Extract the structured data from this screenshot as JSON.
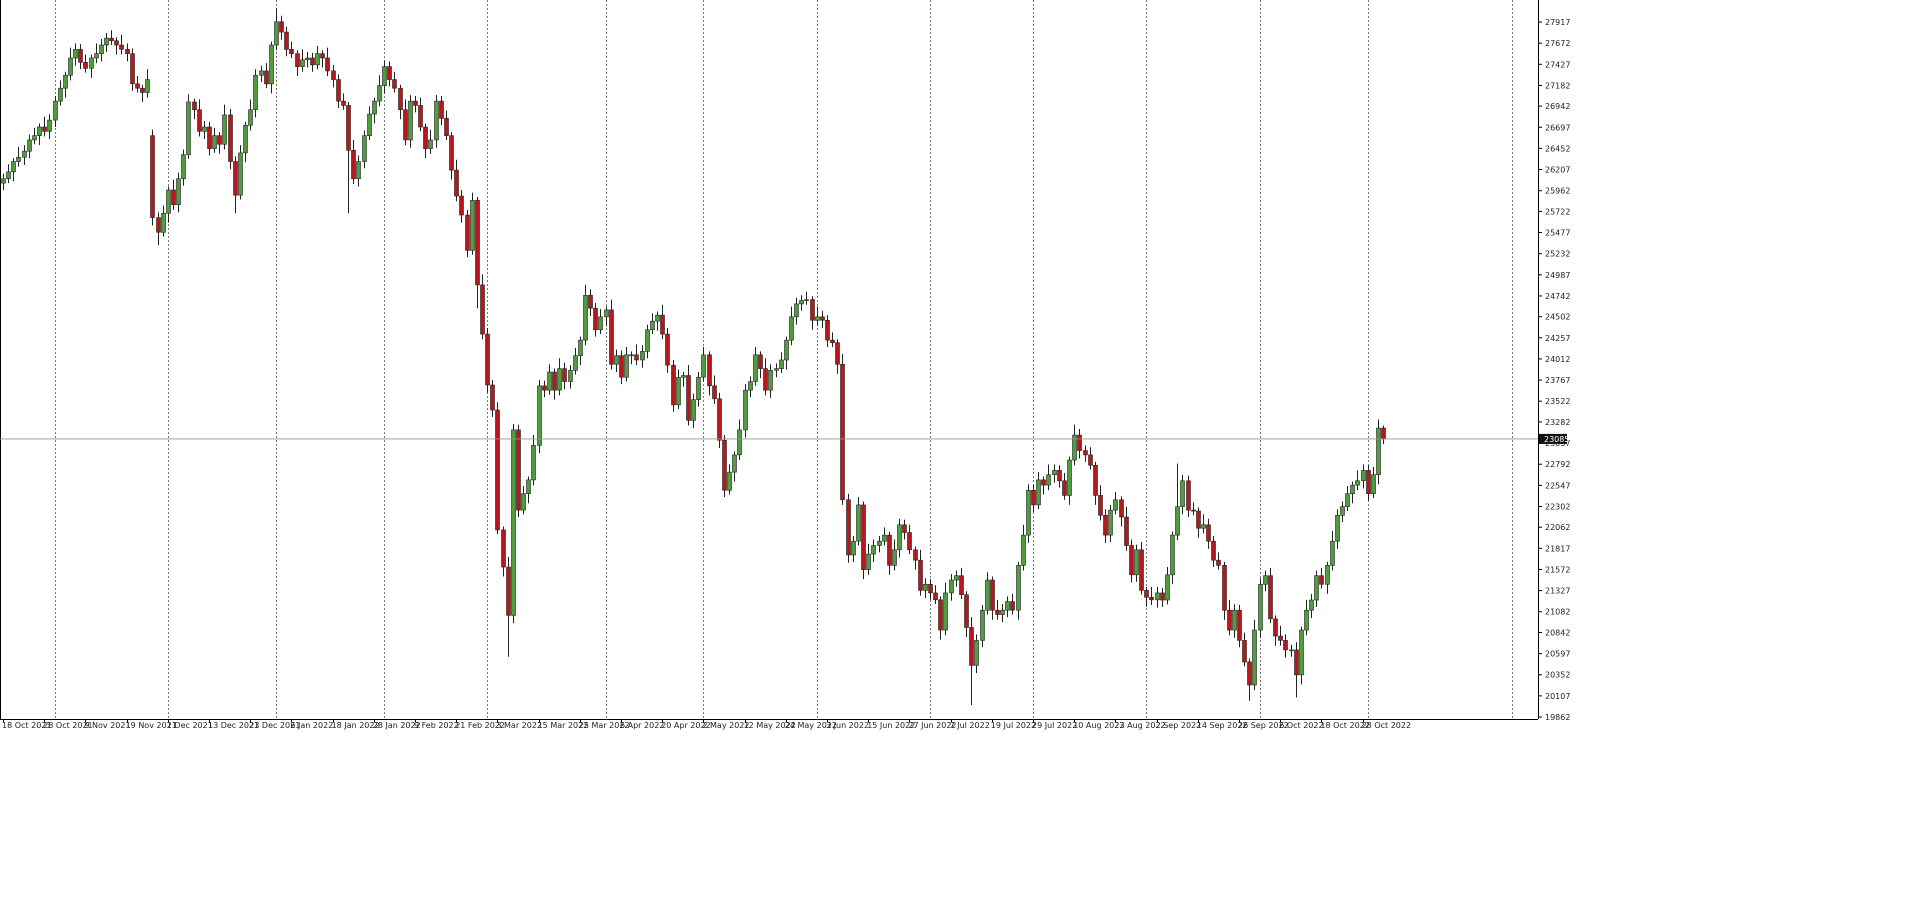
{
  "chart_data": {
    "type": "candlestick",
    "up_color": "#4f9d3e",
    "down_color": "#b5191d",
    "current_price": 23085,
    "ylim": [
      19839,
      28172
    ],
    "yticks": [
      19862,
      20107,
      20352,
      20597,
      20842,
      21082,
      21327,
      21572,
      21817,
      22062,
      22302,
      22547,
      22792,
      23037,
      23282,
      23522,
      23767,
      24012,
      24257,
      24502,
      24742,
      24987,
      25232,
      25477,
      25722,
      25962,
      26207,
      26452,
      26697,
      26942,
      27182,
      27427,
      27672,
      27917
    ],
    "categories": [
      "18 Oct 2021",
      null,
      null,
      null,
      null,
      null,
      null,
      null,
      "28 Oct 2021",
      null,
      null,
      null,
      null,
      null,
      null,
      null,
      "9 Nov 2021",
      null,
      null,
      null,
      null,
      null,
      null,
      null,
      "19 Nov 2021",
      null,
      null,
      null,
      null,
      null,
      null,
      null,
      "1 Dec 2021",
      null,
      null,
      null,
      null,
      null,
      null,
      null,
      "13 Dec 2021",
      null,
      null,
      null,
      null,
      null,
      null,
      null,
      "23 Dec 2021",
      null,
      null,
      null,
      null,
      null,
      null,
      null,
      "6 Jan 2022",
      null,
      null,
      null,
      null,
      null,
      null,
      null,
      "18 Jan 2022",
      null,
      null,
      null,
      null,
      null,
      null,
      null,
      "28 Jan 2022",
      null,
      null,
      null,
      null,
      null,
      null,
      null,
      "9 Feb 2022",
      null,
      null,
      null,
      null,
      null,
      null,
      null,
      "21 Feb 2022",
      null,
      null,
      null,
      null,
      null,
      null,
      null,
      "3 Mar 2022",
      null,
      null,
      null,
      null,
      null,
      null,
      null,
      "15 Mar 2022",
      null,
      null,
      null,
      null,
      null,
      null,
      null,
      "25 Mar 2022",
      null,
      null,
      null,
      null,
      null,
      null,
      null,
      "6 Apr 2022",
      null,
      null,
      null,
      null,
      null,
      null,
      null,
      "20 Apr 2022",
      null,
      null,
      null,
      null,
      null,
      null,
      null,
      "2 May 2022",
      null,
      null,
      null,
      null,
      null,
      null,
      null,
      "12 May 2022",
      null,
      null,
      null,
      null,
      null,
      null,
      null,
      "24 May 2022",
      null,
      null,
      null,
      null,
      null,
      null,
      null,
      "3 Jun 2022",
      null,
      null,
      null,
      null,
      null,
      null,
      null,
      "15 Jun 2022",
      null,
      null,
      null,
      null,
      null,
      null,
      null,
      "27 Jun 2022",
      null,
      null,
      null,
      null,
      null,
      null,
      null,
      "7 Jul 2022",
      null,
      null,
      null,
      null,
      null,
      null,
      null,
      "19 Jul 2022",
      null,
      null,
      null,
      null,
      null,
      null,
      null,
      "29 Jul 2022",
      null,
      null,
      null,
      null,
      null,
      null,
      null,
      "10 Aug 2022",
      null,
      null,
      null,
      null,
      null,
      null,
      null,
      "23 Aug 2022",
      null,
      null,
      null,
      null,
      null,
      null,
      null,
      "2 Sep 2022",
      null,
      null,
      null,
      null,
      null,
      null,
      null,
      "14 Sep 2022",
      null,
      null,
      null,
      null,
      null,
      null,
      null,
      "26 Sep 2022",
      null,
      null,
      null,
      null,
      null,
      null,
      null,
      "6 Oct 2022",
      null,
      null,
      null,
      null,
      null,
      null,
      null,
      "18 Oct 2022",
      null,
      null,
      null,
      null,
      null,
      null,
      null,
      "28 Oct 2022",
      null,
      null,
      null,
      null
    ],
    "open": [
      26050,
      26100,
      26180,
      26300,
      26350,
      26420,
      26550,
      26600,
      26700,
      26650,
      26780,
      27000,
      27150,
      27300,
      27500,
      27600,
      27450,
      27380,
      27500,
      27550,
      27650,
      27730,
      27700,
      27650,
      27600,
      27550,
      27200,
      27150,
      27100,
      26600,
      25650,
      25480,
      25700,
      25970,
      25800,
      26100,
      26380,
      26990,
      26900,
      26650,
      26700,
      26450,
      26600,
      26500,
      26840,
      26300,
      25910,
      26400,
      26720,
      26900,
      27300,
      27350,
      27200,
      27650,
      27920,
      27800,
      27600,
      27550,
      27400,
      27480,
      27500,
      27420,
      27550,
      27500,
      27350,
      27250,
      27000,
      26950,
      26430,
      26100,
      26300,
      26600,
      26850,
      27000,
      27180,
      27400,
      27250,
      27150,
      26900,
      26550,
      27000,
      26950,
      26700,
      26450,
      26550,
      27000,
      26800,
      26600,
      26200,
      25900,
      25680,
      25270,
      25850,
      24870,
      24300,
      23710,
      23420,
      22030,
      21600,
      21040,
      23190,
      22260,
      22450,
      22610,
      23010,
      23700,
      23650,
      23860,
      23650,
      23900,
      23750,
      23880,
      24050,
      24230,
      24750,
      24600,
      24350,
      24500,
      24580,
      23950,
      24050,
      23800,
      24060,
      24060,
      24000,
      24100,
      24350,
      24450,
      24520,
      24300,
      23940,
      23480,
      23800,
      23820,
      23300,
      23540,
      23800,
      24060,
      23700,
      23550,
      23070,
      22490,
      22700,
      22900,
      23190,
      23650,
      23750,
      24060,
      23900,
      23650,
      23880,
      23900,
      24000,
      24230,
      24500,
      24650,
      24690,
      24700,
      24460,
      24500,
      24460,
      24230,
      24200,
      23950,
      22380,
      21740,
      21900,
      22320,
      21570,
      21750,
      21850,
      21900,
      21970,
      21620,
      21800,
      22090,
      22000,
      21800,
      21680,
      21330,
      21400,
      21300,
      21220,
      20870,
      21300,
      21450,
      21500,
      21280,
      20900,
      20460,
      20750,
      21100,
      21450,
      21100,
      21050,
      21100,
      21200,
      21100,
      21620,
      21970,
      22490,
      22320,
      22610,
      22550,
      22670,
      22720,
      22600,
      22430,
      22840,
      23130,
      22950,
      22900,
      22780,
      22430,
      22200,
      21970,
      22260,
      22380,
      22180,
      21850,
      21510,
      21800,
      21330,
      21250,
      21220,
      21300,
      21218,
      21510,
      21970,
      22300,
      22600,
      22260,
      22250,
      22050,
      22090,
      21900,
      21680,
      21620,
      21100,
      20870,
      21100,
      20750,
      20500,
      20233,
      20870,
      21400,
      21500,
      21000,
      20800,
      20750,
      20640,
      20640,
      20350,
      20870,
      21100,
      21218,
      21500,
      21400,
      21620,
      21900,
      22200,
      22300,
      22450,
      22550,
      22600,
      22720,
      22450,
      22670,
      23211
    ],
    "high": [
      26160,
      26270,
      26340,
      26470,
      26490,
      26610,
      26690,
      26740,
      26820,
      26850,
      27060,
      27240,
      27340,
      27620,
      27670,
      27660,
      27540,
      27540,
      27670,
      27720,
      27790,
      27820,
      27740,
      27770,
      27670,
      27610,
      27290,
      27190,
      27370,
      26670,
      25710,
      25790,
      26010,
      26090,
      26170,
      26440,
      27080,
      27030,
      27020,
      26770,
      26760,
      26690,
      26640,
      26960,
      26910,
      26360,
      26490,
      26760,
      27020,
      27370,
      27410,
      27440,
      27690,
      28080,
      27990,
      27860,
      27690,
      27590,
      27600,
      27570,
      27560,
      27640,
      27590,
      27620,
      27420,
      27310,
      27090,
      26990,
      26550,
      26370,
      26660,
      26940,
      27040,
      27300,
      27470,
      27460,
      27340,
      27190,
      27020,
      27070,
      27060,
      27040,
      26740,
      26670,
      27070,
      27060,
      26890,
      26640,
      26320,
      25970,
      25740,
      25940,
      25890,
      24990,
      24370,
      23770,
      23510,
      22070,
      21720,
      23260,
      23250,
      22540,
      22650,
      23130,
      23770,
      23760,
      23950,
      23900,
      24020,
      23970,
      23940,
      24140,
      24270,
      24870,
      24820,
      24660,
      24590,
      24620,
      24700,
      24120,
      24110,
      24150,
      24100,
      24180,
      24170,
      24410,
      24540,
      24560,
      24640,
      24370,
      24000,
      23890,
      23860,
      23940,
      23610,
      23860,
      24150,
      24100,
      23820,
      23620,
      23130,
      22790,
      22940,
      23310,
      23720,
      23810,
      24150,
      24100,
      24020,
      23950,
      23960,
      24090,
      24270,
      24620,
      24720,
      24750,
      24790,
      24740,
      24620,
      24570,
      24520,
      24320,
      24240,
      24070,
      22450,
      21960,
      22410,
      22360,
      21870,
      21920,
      21960,
      22060,
      22010,
      21920,
      22160,
      22150,
      22090,
      21840,
      21800,
      21470,
      21460,
      21390,
      21260,
      21420,
      21520,
      21560,
      21590,
      21320,
      21020,
      20820,
      21160,
      21540,
      21490,
      21220,
      21170,
      21260,
      21290,
      21660,
      22090,
      22560,
      22550,
      22700,
      22650,
      22790,
      22790,
      22780,
      22690,
      22880,
      23250,
      23200,
      23010,
      22990,
      22820,
      22550,
      22270,
      22320,
      22470,
      22420,
      22300,
      21920,
      21860,
      21890,
      21370,
      21370,
      21370,
      21360,
      21600,
      22010,
      22800,
      22670,
      22660,
      22350,
      22290,
      22210,
      22160,
      21960,
      21770,
      21660,
      21220,
      21170,
      21160,
      20840,
      20540,
      20990,
      21470,
      21560,
      21590,
      21040,
      20920,
      20820,
      20700,
      20730,
      20910,
      21220,
      21288,
      21560,
      21590,
      21660,
      22020,
      22270,
      22360,
      22540,
      22590,
      22720,
      22790,
      22780,
      22760,
      23310,
      23240
    ],
    "low": [
      25970,
      26050,
      26070,
      26240,
      26260,
      26340,
      26500,
      26490,
      26590,
      26560,
      26700,
      26950,
      27040,
      27240,
      27410,
      27370,
      27330,
      27270,
      27440,
      27460,
      27570,
      27650,
      27540,
      27540,
      27460,
      27120,
      27100,
      26990,
      27040,
      25560,
      25330,
      25430,
      25590,
      25740,
      25710,
      26020,
      26330,
      26790,
      26590,
      26560,
      26370,
      26400,
      26390,
      26440,
      26210,
      25700,
      25860,
      26290,
      26660,
      26810,
      27220,
      27150,
      27090,
      27590,
      27710,
      27520,
      27500,
      27290,
      27340,
      27390,
      27340,
      27370,
      27390,
      27290,
      27160,
      26920,
      26900,
      25700,
      26040,
      26010,
      26220,
      26550,
      26740,
      26940,
      27090,
      27170,
      27100,
      26790,
      26490,
      26460,
      26870,
      26650,
      26340,
      26390,
      26460,
      26720,
      26550,
      26090,
      25840,
      25590,
      25190,
      25220,
      24600,
      24240,
      23620,
      23340,
      21980,
      21490,
      20560,
      20950,
      22180,
      22210,
      22340,
      22550,
      22920,
      23570,
      23600,
      23540,
      23590,
      23660,
      23670,
      23830,
      23940,
      24170,
      24510,
      24270,
      24300,
      24390,
      23890,
      23860,
      23720,
      23750,
      23950,
      23940,
      23910,
      24020,
      24300,
      24340,
      24240,
      23850,
      23400,
      23430,
      23690,
      23240,
      23210,
      23460,
      23750,
      23590,
      23490,
      22980,
      22410,
      22440,
      22590,
      22840,
      23100,
      23570,
      23700,
      23790,
      23590,
      23560,
      23800,
      23850,
      23890,
      24170,
      24410,
      24570,
      24640,
      24350,
      24400,
      24370,
      24150,
      24150,
      23840,
      22320,
      21650,
      21660,
      21850,
      21460,
      21510,
      21660,
      21770,
      21850,
      21510,
      21560,
      21710,
      21920,
      21750,
      21570,
      21270,
      21240,
      21220,
      21170,
      20760,
      20810,
      21210,
      21370,
      21230,
      20790,
      20000,
      20370,
      20670,
      21050,
      20990,
      20990,
      20960,
      21020,
      21050,
      20990,
      21560,
      21880,
      22240,
      22270,
      22440,
      22490,
      22580,
      22520,
      22380,
      22320,
      22780,
      22860,
      22820,
      22730,
      22320,
      22140,
      21880,
      21890,
      22210,
      22070,
      21790,
      21420,
      21430,
      21280,
      21140,
      21160,
      21130,
      21138,
      21168,
      21400,
      21910,
      22210,
      22180,
      22200,
      21940,
      21990,
      21810,
      21600,
      21570,
      20990,
      20810,
      20780,
      20670,
      20450,
      20050,
      20173,
      20780,
      21320,
      20950,
      20690,
      20690,
      20550,
      20560,
      20090,
      20240,
      20810,
      21010,
      21138,
      21350,
      21290,
      21560,
      21810,
      22120,
      22250,
      22340,
      22490,
      22510,
      22370,
      22400,
      22560,
      23025
    ],
    "close": [
      26100,
      26180,
      26300,
      26350,
      26420,
      26550,
      26600,
      26700,
      26650,
      26780,
      27000,
      27150,
      27300,
      27500,
      27600,
      27450,
      27380,
      27500,
      27550,
      27650,
      27730,
      27700,
      27650,
      27600,
      27550,
      27200,
      27150,
      27100,
      27250,
      25650,
      25480,
      25700,
      25970,
      25800,
      26100,
      26380,
      26990,
      26900,
      26650,
      26700,
      26450,
      26600,
      26500,
      26840,
      26300,
      25910,
      26400,
      26720,
      26900,
      27300,
      27350,
      27200,
      27650,
      27920,
      27800,
      27600,
      27550,
      27400,
      27480,
      27500,
      27420,
      27550,
      27500,
      27350,
      27250,
      27000,
      26950,
      26430,
      26100,
      26300,
      26600,
      26850,
      27000,
      27180,
      27400,
      27250,
      27150,
      26900,
      26550,
      27000,
      26950,
      26700,
      26450,
      26550,
      27000,
      26800,
      26600,
      26200,
      25900,
      25680,
      25270,
      25850,
      24870,
      24300,
      23710,
      23420,
      22030,
      21600,
      21040,
      23190,
      22260,
      22450,
      22610,
      23010,
      23700,
      23650,
      23860,
      23650,
      23900,
      23750,
      23880,
      24050,
      24230,
      24750,
      24600,
      24350,
      24500,
      24580,
      23950,
      24050,
      23800,
      24060,
      24060,
      24000,
      24100,
      24350,
      24450,
      24520,
      24300,
      23940,
      23480,
      23800,
      23820,
      23300,
      23540,
      23800,
      24060,
      23700,
      23550,
      23070,
      22490,
      22700,
      22900,
      23190,
      23650,
      23750,
      24060,
      23900,
      23650,
      23880,
      23900,
      24000,
      24230,
      24500,
      24650,
      24690,
      24700,
      24460,
      24500,
      24460,
      24230,
      24200,
      23950,
      22380,
      21740,
      21900,
      22320,
      21570,
      21750,
      21850,
      21900,
      21970,
      21620,
      21800,
      22090,
      22000,
      21800,
      21680,
      21330,
      21400,
      21300,
      21220,
      20870,
      21300,
      21450,
      21500,
      21280,
      20900,
      20460,
      20750,
      21100,
      21450,
      21100,
      21050,
      21100,
      21200,
      21100,
      21620,
      21970,
      22490,
      22320,
      22610,
      22550,
      22670,
      22720,
      22600,
      22430,
      22840,
      23130,
      22950,
      22900,
      22780,
      22430,
      22200,
      21970,
      22260,
      22380,
      22180,
      21850,
      21510,
      21800,
      21330,
      21250,
      21220,
      21300,
      21218,
      21510,
      21970,
      22300,
      22600,
      22260,
      22250,
      22050,
      22090,
      21900,
      21680,
      21620,
      21100,
      20870,
      21100,
      20750,
      20500,
      20233,
      20870,
      21400,
      21500,
      21000,
      20800,
      20750,
      20640,
      20640,
      20350,
      20870,
      21100,
      21218,
      21500,
      21400,
      21620,
      21900,
      22200,
      22300,
      22450,
      22550,
      22600,
      22720,
      22450,
      22670,
      23211,
      23085
    ]
  }
}
